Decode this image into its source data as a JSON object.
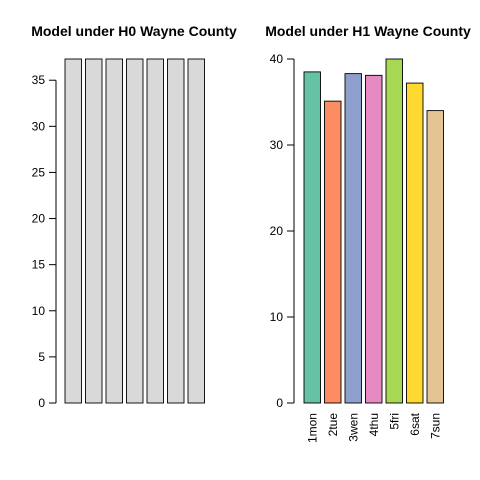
{
  "chart_data": [
    {
      "type": "bar",
      "title": "Model under H0 Wayne County",
      "categories": [
        "1mon",
        "2tue",
        "3wen",
        "4thu",
        "5fri",
        "6sat",
        "7sun"
      ],
      "show_category_labels": false,
      "values": [
        37.3,
        37.3,
        37.3,
        37.3,
        37.3,
        37.3,
        37.3
      ],
      "colors": [
        "#d9d9d9",
        "#d9d9d9",
        "#d9d9d9",
        "#d9d9d9",
        "#d9d9d9",
        "#d9d9d9",
        "#d9d9d9"
      ],
      "ylim": [
        0,
        37.3
      ],
      "yticks": [
        0,
        5,
        10,
        15,
        20,
        25,
        30,
        35
      ],
      "xlabel": "",
      "ylabel": "",
      "grid": false
    },
    {
      "type": "bar",
      "title": "Model under H1 Wayne County",
      "categories": [
        "1mon",
        "2tue",
        "3wen",
        "4thu",
        "5fri",
        "6sat",
        "7sun"
      ],
      "show_category_labels": true,
      "values": [
        38.5,
        35.1,
        38.3,
        38.1,
        40.0,
        37.2,
        34.0
      ],
      "colors": [
        "#66c2a5",
        "#fc8d62",
        "#8da0cb",
        "#e78ac3",
        "#a6d854",
        "#ffd92f",
        "#e5c494"
      ],
      "ylim": [
        0,
        40
      ],
      "yticks": [
        0,
        10,
        20,
        30,
        40
      ],
      "xlabel": "",
      "ylabel": "",
      "grid": false
    }
  ]
}
